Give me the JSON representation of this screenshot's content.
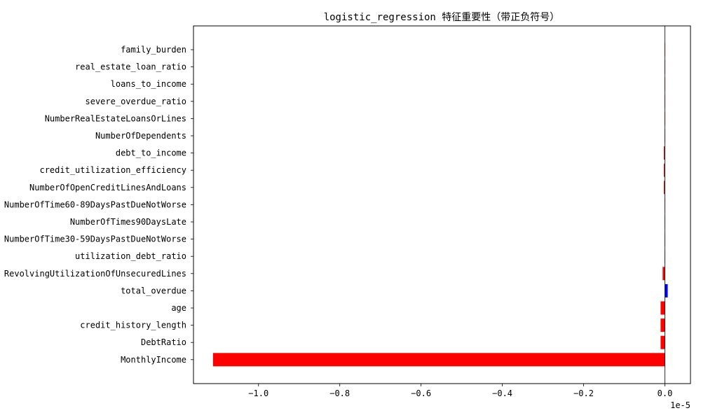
{
  "chart_data": {
    "type": "bar",
    "orientation": "horizontal",
    "title": "logistic_regression 特征重要性（带正负符号）",
    "xlabel": "",
    "ylabel": "",
    "x_scale_label": "1e-5",
    "xlim": [
      -1.16,
      0.063
    ],
    "x_ticks": [
      -1.0,
      -0.8,
      -0.6,
      -0.4,
      -0.2,
      0.0
    ],
    "x_tick_labels": [
      "−1.0",
      "−0.8",
      "−0.6",
      "−0.4",
      "−0.2",
      "0.0"
    ],
    "grid": false,
    "legend": "none",
    "positive_color": "#0000ff",
    "negative_color": "#ff0000",
    "categories": [
      "MonthlyIncome",
      "DebtRatio",
      "credit_history_length",
      "age",
      "total_overdue",
      "RevolvingUtilizationOfUnsecuredLines",
      "utilization_debt_ratio",
      "NumberOfTime30-59DaysPastDueNotWorse",
      "NumberOfTimes90DaysLate",
      "NumberOfTime60-89DaysPastDueNotWorse",
      "NumberOfOpenCreditLinesAndLoans",
      "credit_utilization_efficiency",
      "debt_to_income",
      "NumberOfDependents",
      "NumberRealEstateLoansOrLines",
      "severe_overdue_ratio",
      "loans_to_income",
      "real_estate_loan_ratio",
      "family_burden"
    ],
    "values": [
      -1.112,
      -0.0105,
      -0.0105,
      -0.0105,
      0.007,
      -0.0055,
      -0.0008,
      -0.0008,
      -0.0008,
      -0.0008,
      -0.0025,
      -0.0025,
      -0.0025,
      -0.0002,
      -0.0001,
      -0.0001,
      -0.0001,
      -0.0001,
      -0.0001
    ]
  }
}
